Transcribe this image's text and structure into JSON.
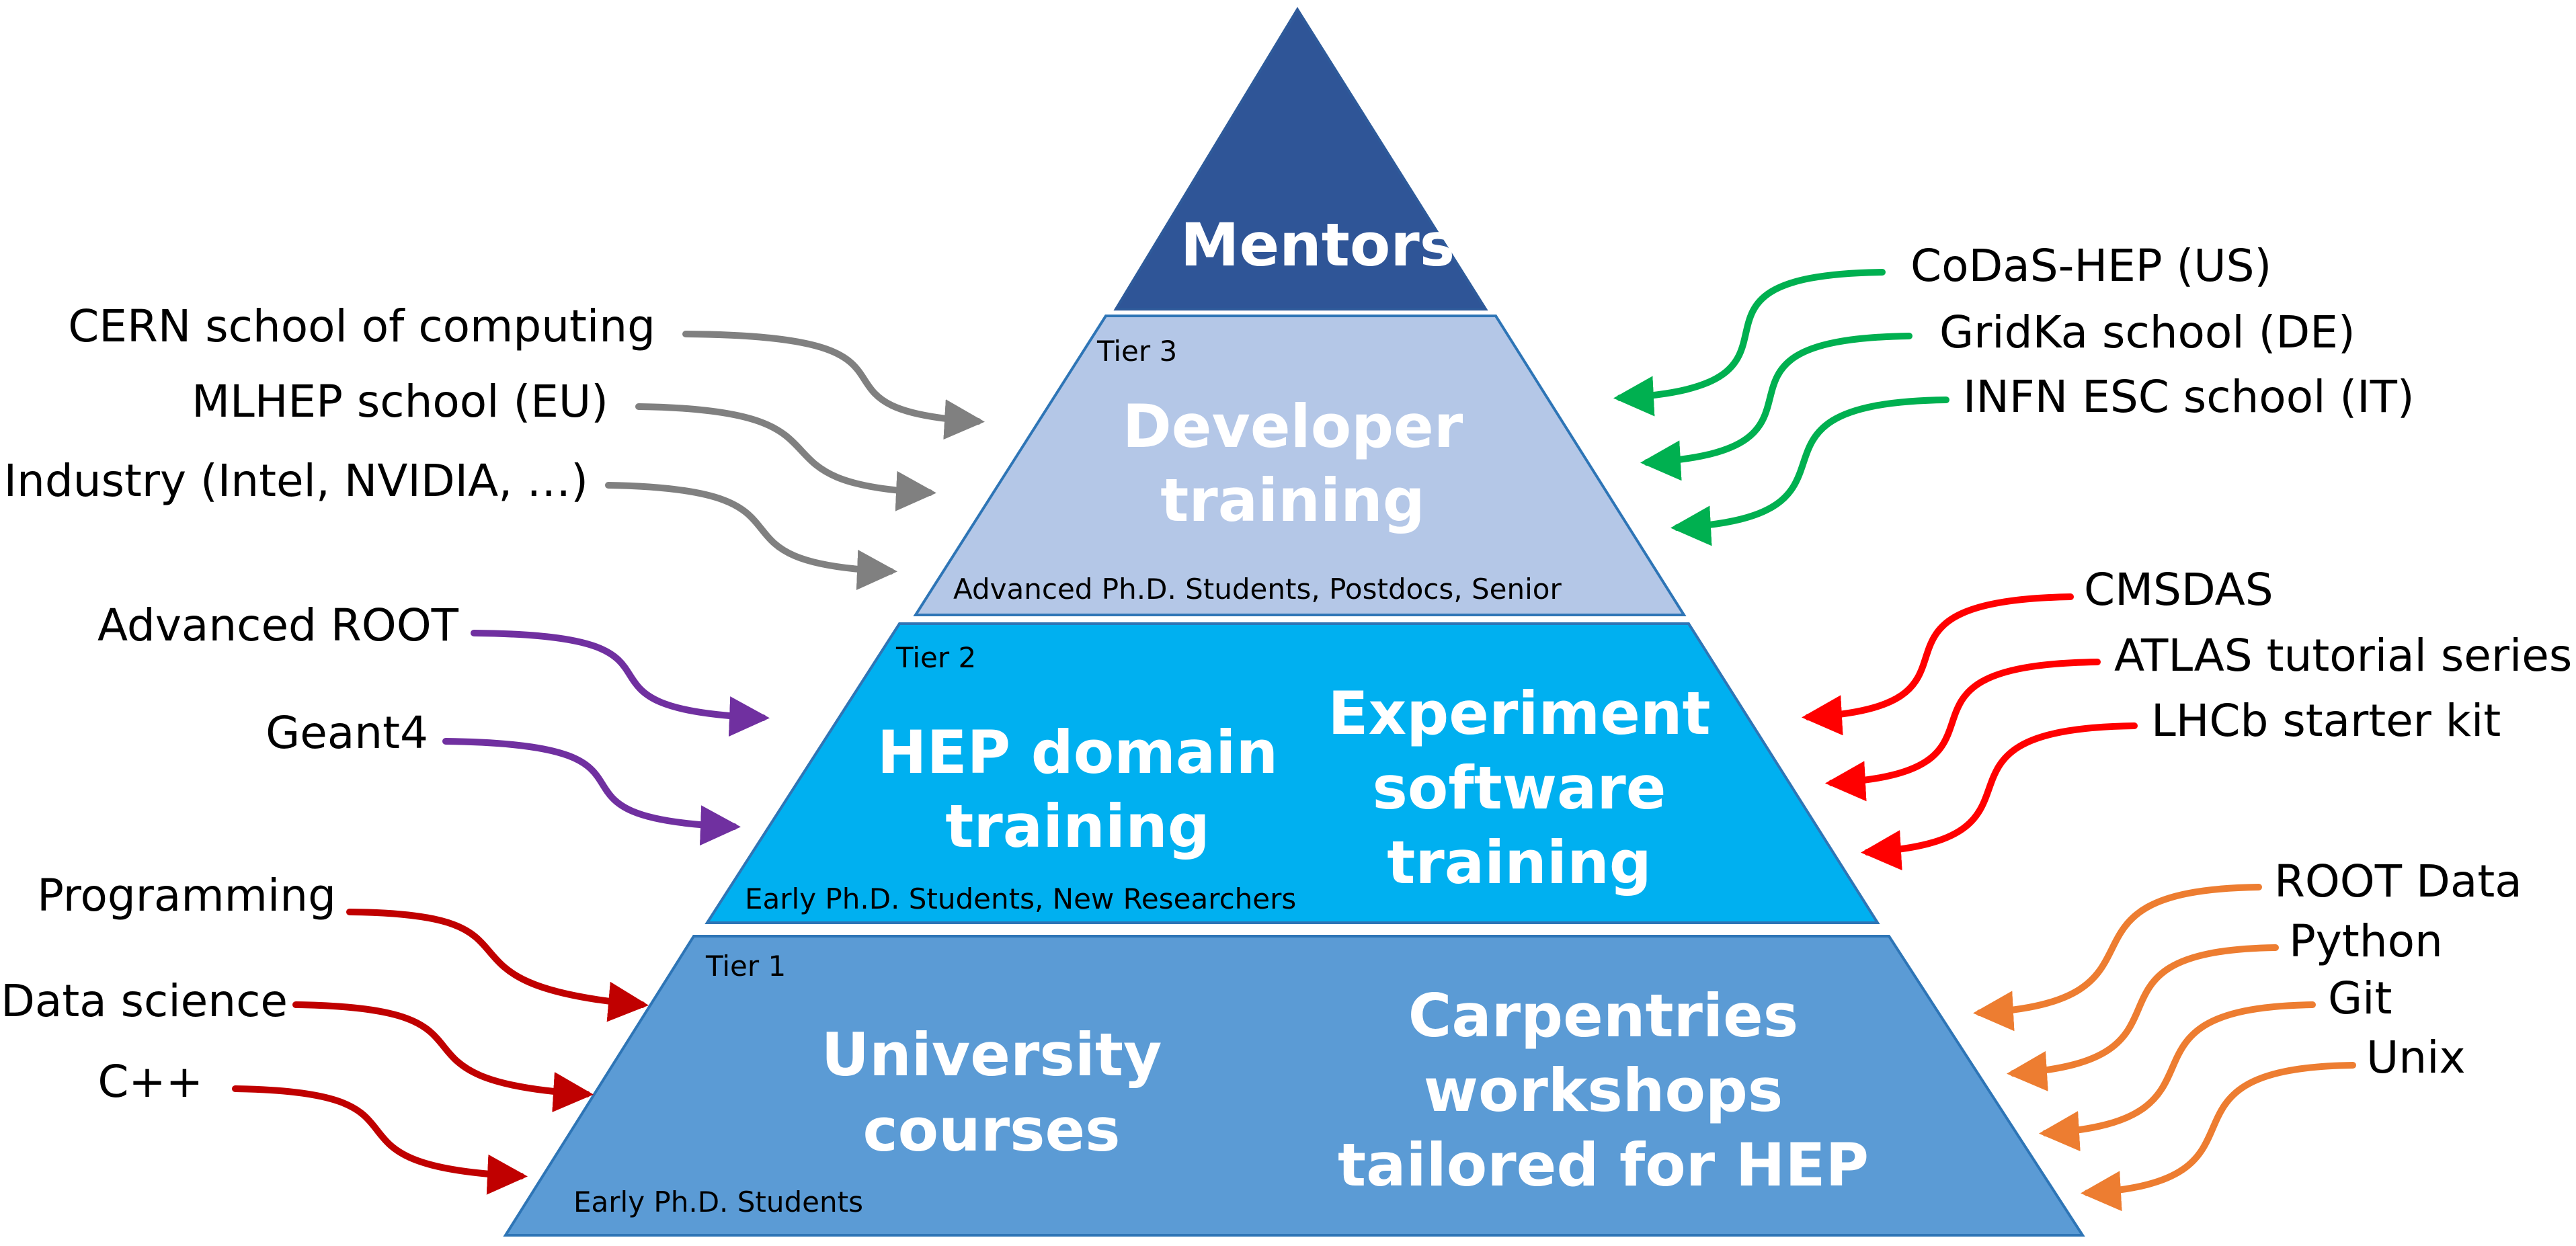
{
  "colors": {
    "mentors": "#2F5597",
    "tier3": "#B4C7E7",
    "tier2": "#00B0F0",
    "tier1": "#5B9BD5",
    "arrow_gray": "#808080",
    "arrow_purple": "#7030A0",
    "arrow_red_dark": "#C00000",
    "arrow_red": "#FF0000",
    "arrow_green": "#00B050",
    "arrow_orange": "#ED7D31"
  },
  "pyramid": {
    "mentors": {
      "title": "Mentors"
    },
    "tier3": {
      "tier_label": "Tier 3",
      "title_lines": [
        "Developer",
        "training"
      ],
      "audience": "Advanced Ph.D. Students, Postdocs, Senior"
    },
    "tier2": {
      "tier_label": "Tier 2",
      "left_title_lines": [
        "HEP domain",
        "training"
      ],
      "right_title_lines": [
        "Experiment",
        "software",
        "training"
      ],
      "audience": "Early Ph.D. Students, New Researchers"
    },
    "tier1": {
      "tier_label": "Tier 1",
      "left_title_lines": [
        "University",
        "courses"
      ],
      "right_title_lines": [
        "Carpentries",
        "workshops",
        "tailored for HEP"
      ],
      "audience": "Early Ph.D. Students"
    }
  },
  "left_sources": {
    "tier3": [
      "CERN school of computing",
      "MLHEP school (EU)",
      "Industry (Intel, NVIDIA, …)"
    ],
    "tier2": [
      "Advanced ROOT",
      "Geant4"
    ],
    "tier1": [
      "Programming",
      "Data science",
      "C++"
    ]
  },
  "right_sources": {
    "tier3": [
      "CoDaS-HEP (US)",
      "GridKa school (DE)",
      "INFN ESC school (IT)"
    ],
    "tier2": [
      "CMSDAS",
      "ATLAS tutorial series",
      "LHCb starter kit"
    ],
    "tier1": [
      "ROOT Data",
      "Python",
      "Git",
      "Unix"
    ]
  }
}
